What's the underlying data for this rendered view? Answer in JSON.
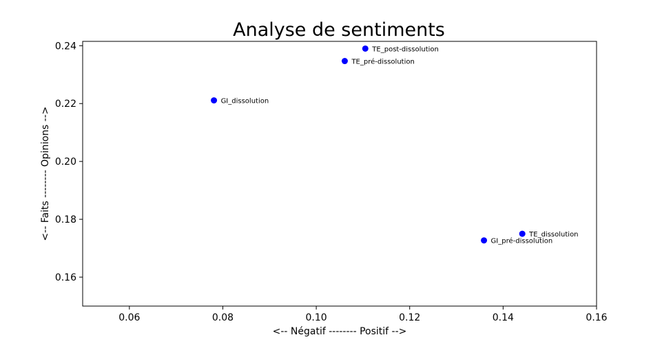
{
  "chart_data": {
    "type": "scatter",
    "title": "Analyse de sentiments",
    "xlabel": "<-- Négatif -------- Positif -->",
    "ylabel": "<-- Faits -------- Opinions -->",
    "xlim": [
      0.05,
      0.16
    ],
    "ylim": [
      0.15,
      0.2415
    ],
    "xticks": [
      0.06,
      0.08,
      0.1,
      0.12,
      0.14,
      0.16
    ],
    "xtick_labels": [
      "0.06",
      "0.08",
      "0.10",
      "0.12",
      "0.14",
      "0.16"
    ],
    "yticks": [
      0.16,
      0.18,
      0.2,
      0.22,
      0.24
    ],
    "ytick_labels": [
      "0.16",
      "0.18",
      "0.20",
      "0.22",
      "0.24"
    ],
    "grid": false,
    "point_color": "#0000ff",
    "points": [
      {
        "label": "TE_post-dissolution",
        "x": 0.1105,
        "y": 0.239
      },
      {
        "label": "TE_pré-dissolution",
        "x": 0.1061,
        "y": 0.2347
      },
      {
        "label": "GI_dissolution",
        "x": 0.0781,
        "y": 0.2211
      },
      {
        "label": "TE_dissolution",
        "x": 0.1441,
        "y": 0.175
      },
      {
        "label": "GI_pré-dissolution",
        "x": 0.1359,
        "y": 0.1727
      }
    ]
  }
}
